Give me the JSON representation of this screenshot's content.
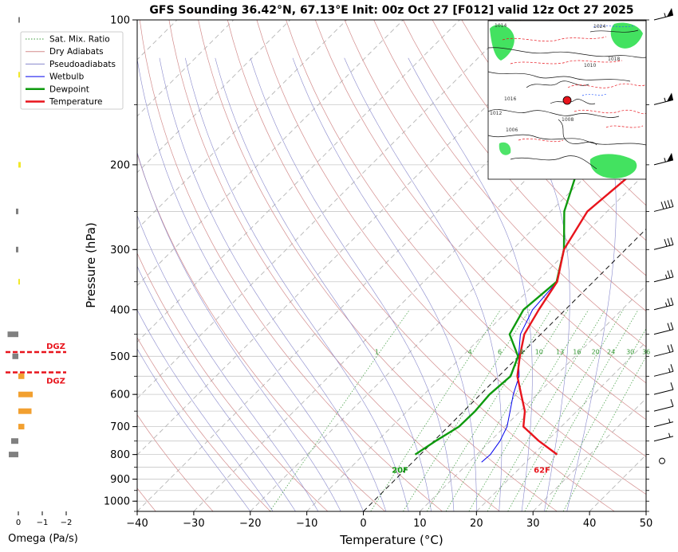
{
  "chart_data": {
    "type": "line",
    "title": "GFS Sounding 36.42°N, 67.13°E Init: 00z Oct 27 [F012] valid 12z Oct 27 2025",
    "xlabel": "Temperature (°C)",
    "ylabel": "Pressure (hPa)",
    "xlim": [
      -40,
      50
    ],
    "ylim": [
      1050,
      100
    ],
    "y_scale": "log",
    "skew": true,
    "x_ticks": [
      -40,
      -30,
      -20,
      -10,
      0,
      10,
      20,
      30,
      40,
      50
    ],
    "x_tick_labels": [
      "−40",
      "−30",
      "−20",
      "−10",
      "0",
      "10",
      "20",
      "30",
      "40",
      "50"
    ],
    "y_ticks": [
      100,
      200,
      300,
      400,
      500,
      600,
      700,
      800,
      900,
      1000
    ],
    "legend_placement": "upper-left",
    "legend": [
      "Sat. Mix. Ratio",
      "Dry Adiabats",
      "Pseudoadiabats",
      "Wetbulb",
      "Dewpoint",
      "Temperature"
    ],
    "series": [
      {
        "name": "Temperature",
        "color": "#e8141c",
        "points": [
          [
            100,
            -2.3
          ],
          [
            150,
            -5.3
          ],
          [
            200,
            -12.0
          ],
          [
            250,
            -13.5
          ],
          [
            300,
            -10.9
          ],
          [
            350,
            -6.4
          ],
          [
            400,
            -4.7
          ],
          [
            450,
            -2.9
          ],
          [
            500,
            0.2
          ],
          [
            550,
            3.3
          ],
          [
            600,
            7.2
          ],
          [
            650,
            10.8
          ],
          [
            700,
            13.3
          ],
          [
            750,
            18.6
          ],
          [
            800,
            24.2
          ]
        ]
      },
      {
        "name": "Dewpoint",
        "color": "#0e9a0e",
        "points": [
          [
            100,
            -19.3
          ],
          [
            150,
            -26.8
          ],
          [
            200,
            -23.2
          ],
          [
            250,
            -17.6
          ],
          [
            300,
            -10.9
          ],
          [
            350,
            -6.5
          ],
          [
            400,
            -7.4
          ],
          [
            450,
            -5.5
          ],
          [
            500,
            -0.1
          ],
          [
            550,
            2.1
          ],
          [
            600,
            1.6
          ],
          [
            650,
            2.0
          ],
          [
            700,
            1.9
          ],
          [
            750,
            0.3
          ],
          [
            800,
            -0.9
          ]
        ]
      },
      {
        "name": "Wetbulb",
        "color": "#0000ee",
        "points": [
          [
            350,
            -6.4
          ],
          [
            400,
            -5.8
          ],
          [
            450,
            -3.6
          ],
          [
            500,
            0.0
          ],
          [
            550,
            3.6
          ],
          [
            600,
            5.8
          ],
          [
            650,
            8.2
          ],
          [
            700,
            10.4
          ],
          [
            750,
            11.7
          ],
          [
            800,
            12.4
          ],
          [
            830,
            12.2
          ]
        ]
      }
    ],
    "annotations": [
      {
        "text": "62F",
        "color": "#e8141c",
        "pressure": 860,
        "temperature": 24.2
      },
      {
        "text": "20F",
        "color": "#0e9a0e",
        "pressure": 860,
        "temperature": -0.9
      }
    ],
    "mixing_ratio_labels": [
      "1",
      "4",
      "6",
      "8",
      "10",
      "13",
      "16",
      "20",
      "24",
      "30",
      "36"
    ],
    "mixing_ratio_values": [
      1,
      4,
      6,
      8,
      10,
      13,
      16,
      20,
      24,
      30,
      36
    ],
    "omega_panel": {
      "xlabel": "Omega (Pa/s)",
      "x_ticks": [
        0,
        -1,
        -2
      ],
      "x_tick_labels": [
        "0",
        "−1",
        "−2"
      ],
      "dgz_label": "DGZ",
      "dgz_pressures": [
        490,
        540
      ],
      "bars": [
        {
          "p": 100,
          "value": -0.05,
          "color": "#808080"
        },
        {
          "p": 130,
          "value": -0.05,
          "color": "#f2e82a"
        },
        {
          "p": 200,
          "value": -0.1,
          "color": "#f2e82a"
        },
        {
          "p": 250,
          "value": 0.1,
          "color": "#808080"
        },
        {
          "p": 300,
          "value": 0.1,
          "color": "#808080"
        },
        {
          "p": 350,
          "value": -0.02,
          "color": "#f2e82a"
        },
        {
          "p": 450,
          "value": 0.45,
          "color": "#808080"
        },
        {
          "p": 500,
          "value": 0.25,
          "color": "#808080"
        },
        {
          "p": 550,
          "value": -0.25,
          "color": "#f2a030"
        },
        {
          "p": 600,
          "value": -0.6,
          "color": "#f2a030"
        },
        {
          "p": 650,
          "value": -0.55,
          "color": "#f2a030"
        },
        {
          "p": 700,
          "value": -0.25,
          "color": "#f2a030"
        },
        {
          "p": 750,
          "value": 0.3,
          "color": "#808080"
        },
        {
          "p": 800,
          "value": 0.4,
          "color": "#808080"
        }
      ]
    },
    "wind_barbs": [
      {
        "p": 100,
        "kt": 55
      },
      {
        "p": 150,
        "kt": 55
      },
      {
        "p": 200,
        "kt": 55
      },
      {
        "p": 250,
        "kt": 40
      },
      {
        "p": 300,
        "kt": 30
      },
      {
        "p": 350,
        "kt": 25
      },
      {
        "p": 400,
        "kt": 25
      },
      {
        "p": 450,
        "kt": 20
      },
      {
        "p": 500,
        "kt": 20
      },
      {
        "p": 550,
        "kt": 15
      },
      {
        "p": 600,
        "kt": 10
      },
      {
        "p": 650,
        "kt": 10
      },
      {
        "p": 700,
        "kt": 5
      },
      {
        "p": 750,
        "kt": 5
      },
      {
        "p": 800,
        "kt": 0
      }
    ],
    "inset_map": {
      "description_labels": [
        "1024",
        "1018",
        "1014",
        "1010",
        "1008",
        "1006",
        "1016",
        "1012"
      ],
      "marker_color": "#e8141c"
    }
  },
  "colors": {
    "isotherm": "#b5b5b5",
    "dry_adiabat": "#d38c8c",
    "pseudoadiabat": "#8888cc",
    "mixing_ratio": "#3a9a3a",
    "zero_isotherm": "#000000",
    "dgz": "#e8141c"
  }
}
